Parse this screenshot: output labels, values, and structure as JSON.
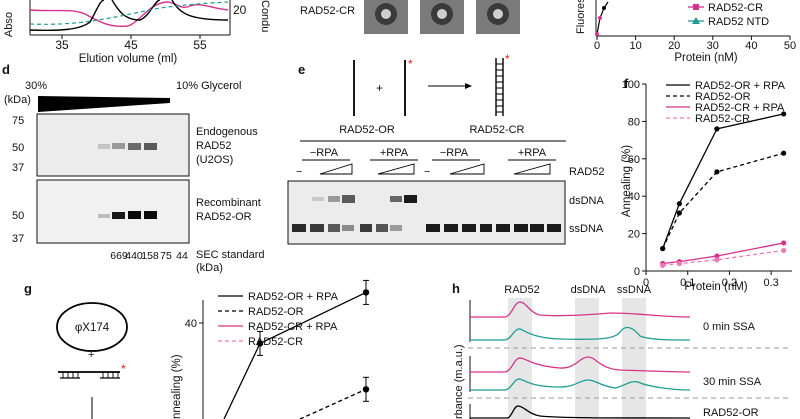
{
  "top_panel_left": {
    "xlabel": "Elution volume (ml)",
    "ylabel_left": "Abso",
    "ylabel_right": "Condu",
    "xticks": [
      "35",
      "45",
      "55"
    ],
    "right_tick": "20"
  },
  "top_panel_mid": {
    "label": "RAD52-CR"
  },
  "top_panel_right": {
    "ylabel": "Fluores",
    "xlabel": "Protein (nM)",
    "xticks": [
      "0",
      "10",
      "20",
      "30",
      "40",
      "50"
    ],
    "legend": [
      "RAD52-CR",
      "RAD52 NTD"
    ]
  },
  "panel_d": {
    "letter": "d",
    "glycerol_left": "30%",
    "glycerol_right": "10% Glycerol",
    "unit": "(kDa)",
    "blot1_ticks": [
      "75",
      "50",
      "37"
    ],
    "blot2_ticks": [
      "50",
      "37"
    ],
    "blot1_label": [
      "Endogenous",
      "RAD52",
      "(U2OS)"
    ],
    "blot2_label": [
      "Recombinant",
      "RAD52-OR"
    ],
    "standards": [
      "669",
      "440",
      "158",
      "75",
      "44"
    ],
    "standards_title": "SEC standard",
    "standards_unit": "(kDa)"
  },
  "panel_e": {
    "letter": "e",
    "plus": "+",
    "asterisk": "*",
    "group1": "RAD52-OR",
    "group2": "RAD52-CR",
    "neg_rpa": "−RPA",
    "pos_rpa": "+RPA",
    "dash": "−",
    "rad52": "RAD52",
    "dsdna": "dsDNA",
    "ssdna": "ssDNA"
  },
  "panel_f": {
    "letter": "f",
    "ylabel": "Annealing (%)",
    "xlabel": "Protein (nM)",
    "chart_data": {
      "type": "line",
      "xlabel": "Protein (nM)",
      "ylabel": "Annealing (%)",
      "xlim": [
        0,
        0.35
      ],
      "ylim": [
        0,
        100
      ],
      "xticks": [
        "0",
        "0.1",
        "0.2",
        "0.3"
      ],
      "yticks": [
        "0",
        "20",
        "40",
        "60",
        "80",
        "100"
      ],
      "series": [
        {
          "name": "RAD52-OR + RPA",
          "color": "#000000",
          "dashed": false,
          "x": [
            0.04,
            0.08,
            0.17,
            0.33
          ],
          "y": [
            12,
            36,
            76,
            84
          ]
        },
        {
          "name": "RAD52-OR",
          "color": "#000000",
          "dashed": true,
          "x": [
            0.04,
            0.08,
            0.17,
            0.33
          ],
          "y": [
            12,
            31,
            53,
            63
          ]
        },
        {
          "name": "RAD52-CR + RPA",
          "color": "#d6338a",
          "dashed": false,
          "x": [
            0.04,
            0.08,
            0.17,
            0.33
          ],
          "y": [
            4,
            5,
            8,
            15
          ]
        },
        {
          "name": "RAD52-CR",
          "color": "#ee7ab4",
          "dashed": true,
          "x": [
            0.04,
            0.08,
            0.17,
            0.33
          ],
          "y": [
            3,
            4,
            6,
            11
          ]
        }
      ]
    }
  },
  "panel_g": {
    "letter": "g",
    "phage": "φX174",
    "plus": "+",
    "asterisk": "*",
    "ylabel": "nnealing (%)",
    "chart_data": {
      "type": "line",
      "ylabel": "nnealing (%)",
      "yticks": [
        "20",
        "40"
      ],
      "series": [
        {
          "name": "RAD52-OR + RPA",
          "color": "#000000",
          "dashed": false,
          "x": [
            2,
            3
          ],
          "y": [
            36,
            46
          ]
        },
        {
          "name": "RAD52-OR",
          "color": "#000000",
          "dashed": true,
          "x": [
            3
          ],
          "y": [
            27
          ]
        },
        {
          "name": "RAD52-CR + RPA",
          "color": "#d6338a",
          "dashed": false,
          "x": [],
          "y": []
        },
        {
          "name": "RAD52-CR",
          "color": "#ee7ab4",
          "dashed": true,
          "x": [],
          "y": []
        }
      ]
    }
  },
  "panel_h": {
    "letter": "h",
    "peaks": [
      "RAD52",
      "dsDNA",
      "ssDNA"
    ],
    "conditions": [
      "0 min SSA",
      "30 min SSA",
      "RAD52-OR"
    ],
    "ylabel": "rbance (m.a.u.)"
  },
  "colors": {
    "pink": "#d6338a",
    "light_pink": "#ee7ab4",
    "teal": "#1f9e94",
    "black": "#000000"
  }
}
